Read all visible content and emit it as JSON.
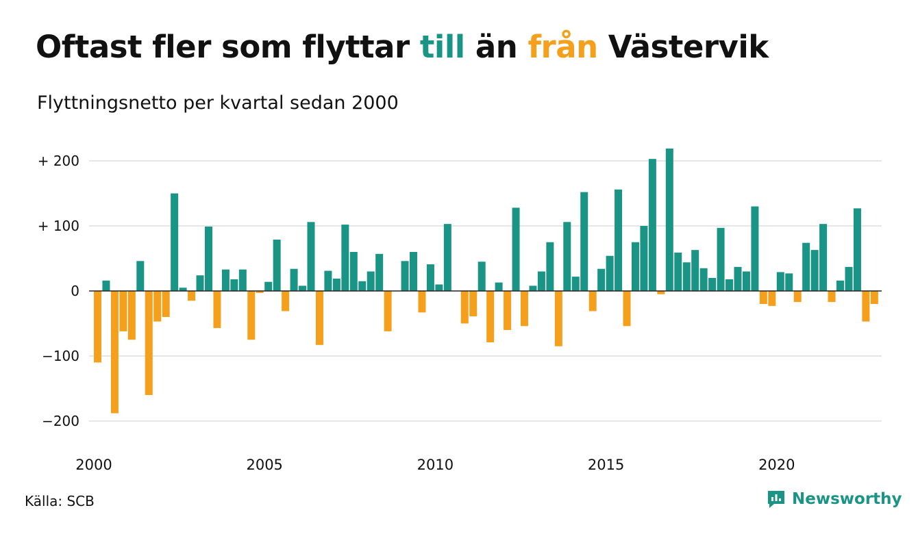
{
  "title": {
    "part1": "Oftast fler som flyttar ",
    "word_in": "till",
    "part2": " än ",
    "word_out": "från",
    "part3": " Västervik"
  },
  "subtitle": "Flyttningsnetto per kvartal sedan 2000",
  "source": "Källa: SCB",
  "logo_text": "Newsworthy",
  "colors": {
    "positive": "#1a9485",
    "negative": "#f5a01c",
    "grid": "#dddddd",
    "text": "#111111"
  },
  "icons": {
    "logo": "newsworthy-logo-icon"
  },
  "chart_data": {
    "type": "bar",
    "title": "Oftast fler som flyttar till än från Västervik",
    "subtitle": "Flyttningsnetto per kvartal sedan 2000",
    "xlabel": "",
    "ylabel": "",
    "x_start": 2000,
    "periods_per_year": 4,
    "ylim": [
      -230,
      230
    ],
    "y_ticks": [
      200,
      100,
      0,
      -100,
      -200
    ],
    "y_tick_labels": [
      "+ 200",
      "+ 100",
      "0",
      "−100",
      "−200"
    ],
    "x_tick_labels": [
      "2000",
      "2005",
      "2010",
      "2015",
      "2020"
    ],
    "grid": true,
    "values": [
      -110,
      16,
      -188,
      -62,
      -75,
      46,
      -160,
      -47,
      -40,
      150,
      5,
      -15,
      24,
      99,
      -57,
      33,
      18,
      33,
      -75,
      -3,
      14,
      79,
      -31,
      34,
      8,
      106,
      -83,
      31,
      19,
      102,
      60,
      15,
      30,
      57,
      -62,
      0,
      46,
      60,
      -33,
      41,
      10,
      103,
      0,
      -50,
      -39,
      45,
      -79,
      13,
      -60,
      128,
      -54,
      8,
      30,
      75,
      -85,
      106,
      22,
      152,
      -31,
      34,
      54,
      156,
      -54,
      75,
      100,
      203,
      -5,
      219,
      59,
      44,
      63,
      35,
      20,
      97,
      18,
      37,
      30,
      130,
      -20,
      -23,
      29,
      27,
      -17,
      74,
      63,
      103,
      -17,
      16,
      37,
      127,
      -47,
      -20
    ]
  }
}
